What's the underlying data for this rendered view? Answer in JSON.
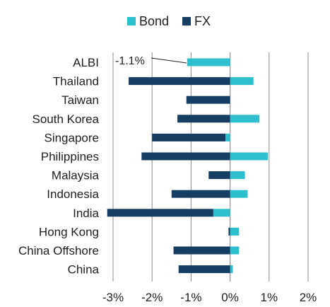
{
  "chart_data": {
    "type": "bar",
    "orientation": "horizontal",
    "categories": [
      "ALBI",
      "Thailand",
      "Taiwan",
      "South Korea",
      "Singapore",
      "Philippines",
      "Malaysia",
      "Indonesia",
      "India",
      "Hong Kong",
      "China Offshore",
      "China"
    ],
    "series": [
      {
        "name": "Bond",
        "color": "#2ebfcf",
        "values": [
          -1.1,
          0.6,
          0.0,
          0.75,
          -0.12,
          0.97,
          0.38,
          0.45,
          -0.43,
          0.23,
          0.23,
          0.07
        ]
      },
      {
        "name": "FX",
        "color": "#163e63",
        "values": [
          0.0,
          -2.6,
          -1.12,
          -1.35,
          -1.88,
          -2.27,
          -0.55,
          -1.5,
          -2.72,
          -0.04,
          -1.45,
          -1.32
        ]
      }
    ],
    "stacked": true,
    "xlim": [
      -3,
      2
    ],
    "xticks": [
      "-3%",
      "-2%",
      "-1%",
      "0%",
      "1%",
      "2%"
    ],
    "xtick_values": [
      -3,
      -2,
      -1,
      0,
      1,
      2
    ],
    "grid": "vertical",
    "legend": {
      "placement": "top",
      "entries": [
        "Bond",
        "FX"
      ]
    },
    "annotation": {
      "category": "ALBI",
      "text": "-1.1%"
    },
    "title": "",
    "xlabel": "",
    "ylabel": ""
  }
}
